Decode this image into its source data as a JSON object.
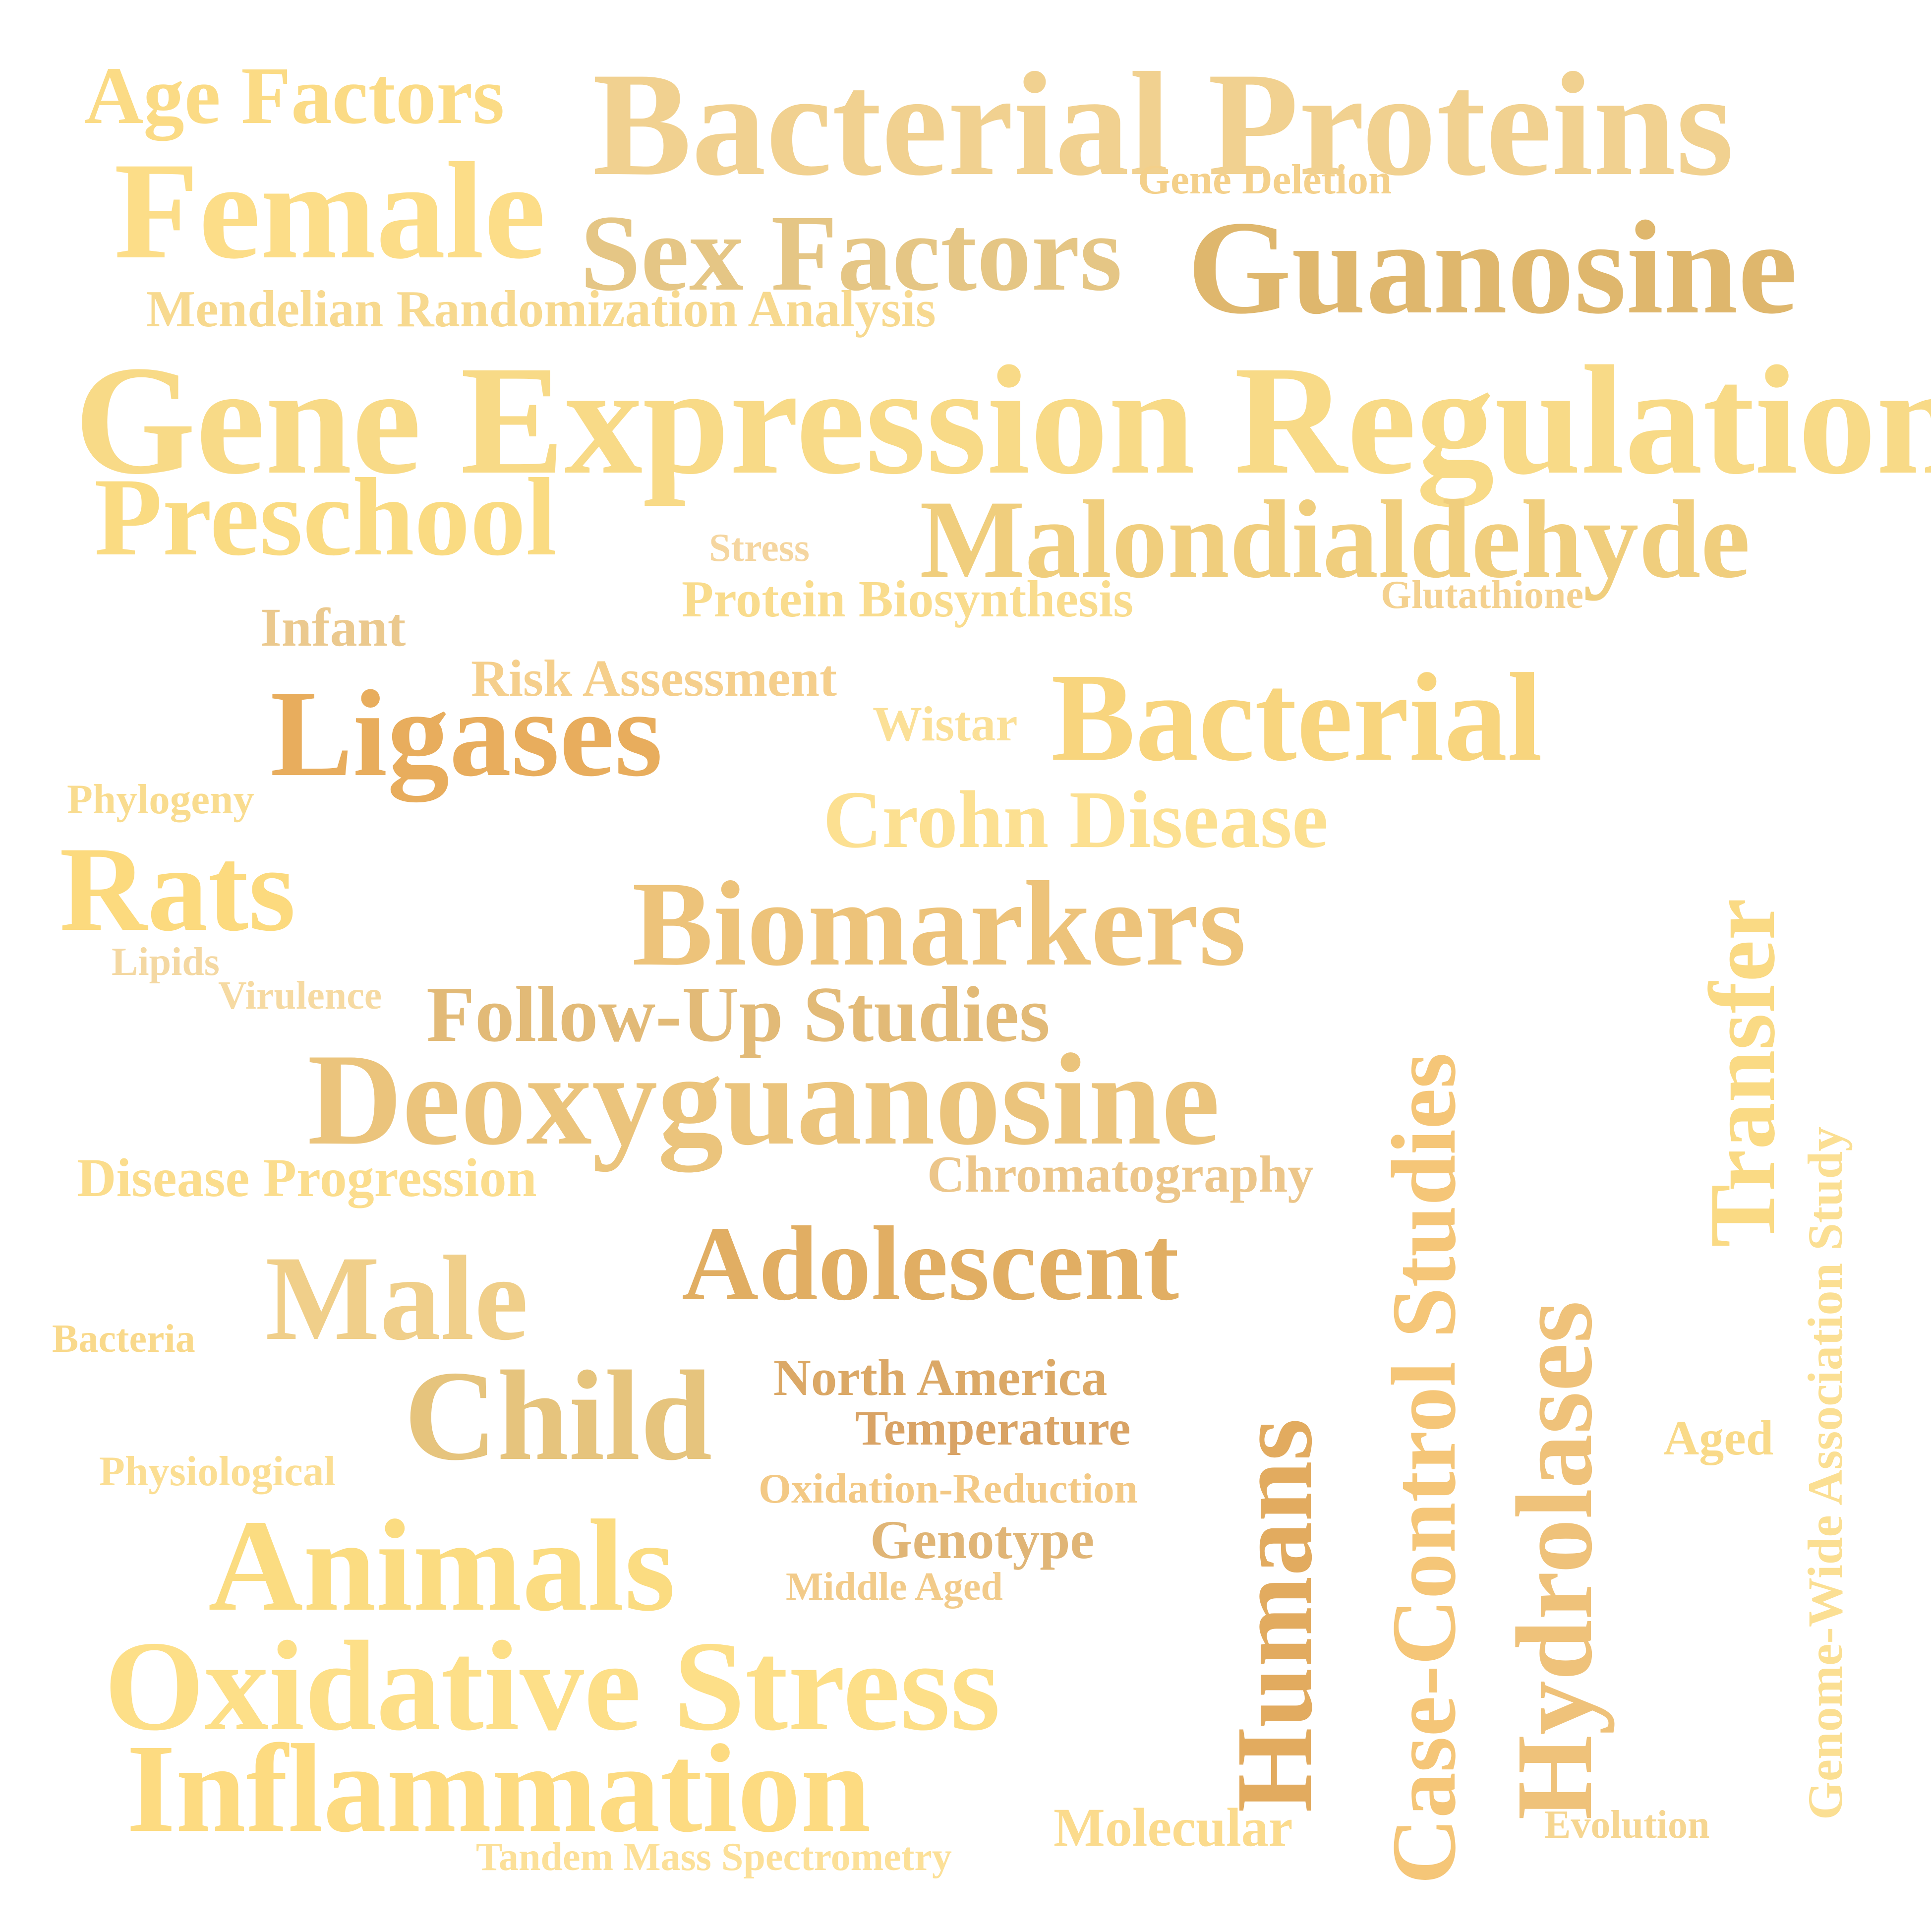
{
  "words": [
    {
      "text": "Age Factors",
      "color": "#FBDB85"
    },
    {
      "text": "Bacterial Proteins",
      "color": "#F1D190"
    },
    {
      "text": "Female",
      "color": "#FCDD88"
    },
    {
      "text": "Gene Deletion",
      "color": "#F4D08A"
    },
    {
      "text": "Sex Factors",
      "color": "#E5C685"
    },
    {
      "text": "Guanosine",
      "color": "#DFB76D"
    },
    {
      "text": "Mendelian Randomization Analysis",
      "color": "#F7D98F"
    },
    {
      "text": "Gene Expression Regulation",
      "color": "#F8DA87"
    },
    {
      "text": "Preschool",
      "color": "#FADB82"
    },
    {
      "text": "Stress",
      "color": "#F5D6A0"
    },
    {
      "text": "Malondialdehyde",
      "color": "#F0CE7D"
    },
    {
      "text": "Protein Biosynthesis",
      "color": "#F9DC8D"
    },
    {
      "text": "Glutathione",
      "color": "#F4D18F"
    },
    {
      "text": "Infant",
      "color": "#EBC98E"
    },
    {
      "text": "Risk Assessment",
      "color": "#F5CF8C"
    },
    {
      "text": "Ligases",
      "color": "#E8AD5D"
    },
    {
      "text": "Wistar",
      "color": "#FBE097"
    },
    {
      "text": "Bacterial",
      "color": "#F8D57E"
    },
    {
      "text": "Phylogeny",
      "color": "#F9DC8F"
    },
    {
      "text": "Crohn Disease",
      "color": "#FCE091"
    },
    {
      "text": "Rats",
      "color": "#FCDA7E"
    },
    {
      "text": "Biomarkers",
      "color": "#EDC37A"
    },
    {
      "text": "Lipids",
      "color": "#F4D8A2"
    },
    {
      "text": "Virulence",
      "color": "#F6DAA2"
    },
    {
      "text": "Follow-Up Studies",
      "color": "#E2BA77"
    },
    {
      "text": "Deoxyguanosine",
      "color": "#EBC47C"
    },
    {
      "text": "Disease Progression",
      "color": "#FBDD8D"
    },
    {
      "text": "Chromatography",
      "color": "#ECC68A"
    },
    {
      "text": "Adolescent",
      "color": "#E1AE63"
    },
    {
      "text": "Male",
      "color": "#F0CF8A"
    },
    {
      "text": "Bacteria",
      "color": "#F9D98B"
    },
    {
      "text": "North America",
      "color": "#DBA866"
    },
    {
      "text": "Child",
      "color": "#E6C47D"
    },
    {
      "text": "Temperature",
      "color": "#D9A365"
    },
    {
      "text": "Physiological",
      "color": "#FBDE93"
    },
    {
      "text": "Oxidation-Reduction",
      "color": "#F3C985"
    },
    {
      "text": "Genotype",
      "color": "#E0B576"
    },
    {
      "text": "Animals",
      "color": "#FBDC81"
    },
    {
      "text": "Middle Aged",
      "color": "#F2CB8A"
    },
    {
      "text": "Oxidative Stress",
      "color": "#FDDF88"
    },
    {
      "text": "Inflammation",
      "color": "#FDDB81"
    },
    {
      "text": "Molecular",
      "color": "#FBDB8D"
    },
    {
      "text": "Tandem Mass Spectrometry",
      "color": "#FCE098"
    },
    {
      "text": "Evolution",
      "color": "#F6D691"
    },
    {
      "text": "Aged",
      "color": "#F9DA89"
    },
    {
      "text": "Humans",
      "color": "#E2AB5F"
    },
    {
      "text": "Case-Control Studies",
      "color": "#F5C678"
    },
    {
      "text": "Hydrolases",
      "color": "#EFC27A"
    },
    {
      "text": "Transfer",
      "color": "#FADA84"
    },
    {
      "text": "Genome-Wide Association Study",
      "color": "#FBDF93"
    }
  ]
}
